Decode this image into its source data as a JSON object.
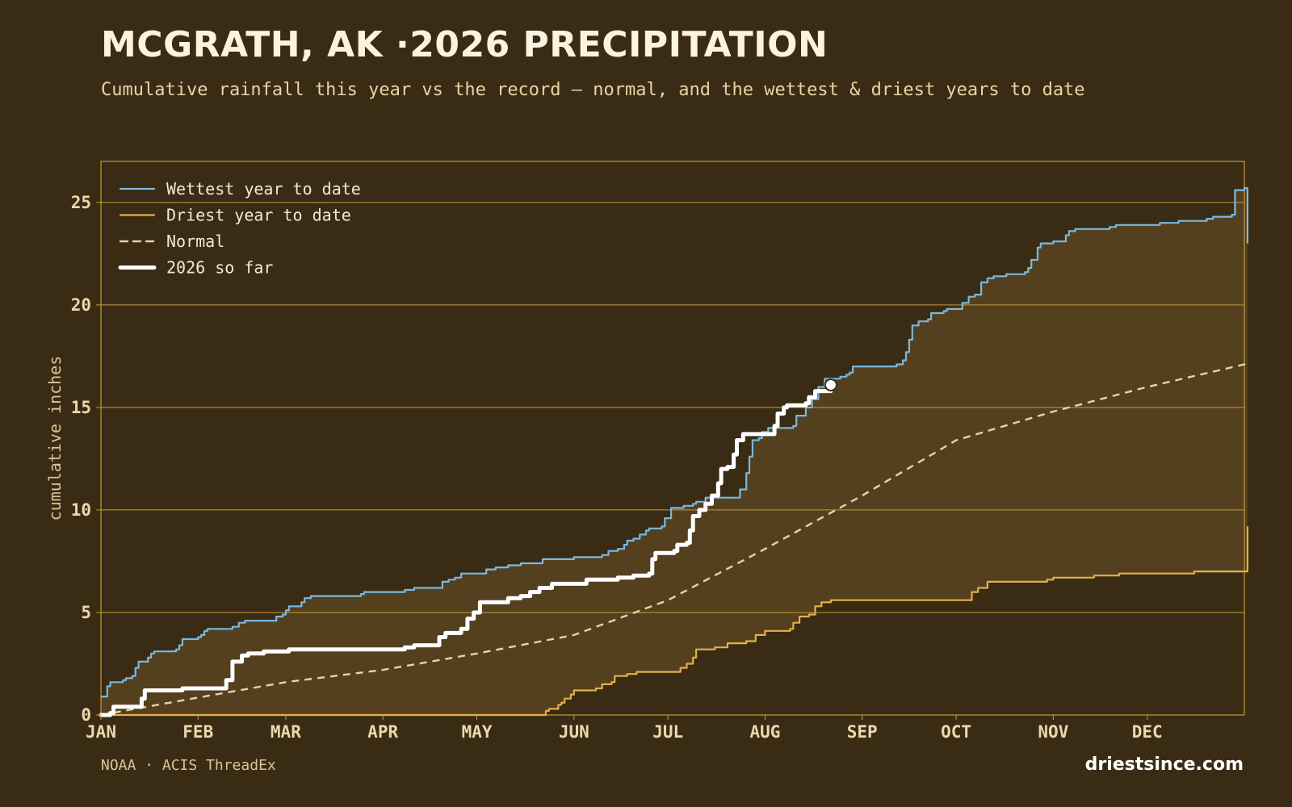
{
  "header": {
    "title": "MCGRATH, AK ·2026 PRECIPITATION",
    "subtitle": "Cumulative rainfall this year vs the record — normal, and the wettest & driest years to date"
  },
  "footer": {
    "source": "NOAA · ACIS ThreadEx",
    "brand": "driestsince.com"
  },
  "colors": {
    "background": "#3a2c14",
    "band_fill": "#54401f",
    "grid": "#c49a3a",
    "wettest": "#7ab8e0",
    "driest": "#e3b04a",
    "normal": "#e6d4a8",
    "current": "#ffffff"
  },
  "chart_data": {
    "type": "line",
    "ylabel": "cumulative inches",
    "xlim": [
      0,
      365
    ],
    "ylim": [
      0,
      27
    ],
    "yticks": [
      0,
      5,
      10,
      15,
      20,
      25
    ],
    "month_ticks": [
      {
        "label": "JAN",
        "day": 0
      },
      {
        "label": "FEB",
        "day": 31
      },
      {
        "label": "MAR",
        "day": 59
      },
      {
        "label": "APR",
        "day": 90
      },
      {
        "label": "MAY",
        "day": 120
      },
      {
        "label": "JUN",
        "day": 151
      },
      {
        "label": "JUL",
        "day": 181
      },
      {
        "label": "AUG",
        "day": 212
      },
      {
        "label": "SEP",
        "day": 243
      },
      {
        "label": "OCT",
        "day": 273
      },
      {
        "label": "NOV",
        "day": 304
      },
      {
        "label": "DEC",
        "day": 334
      }
    ],
    "grid": true,
    "legend_position": "top-left",
    "series": [
      {
        "key": "wettest",
        "name": "Wettest year to date",
        "style": "solid",
        "points": [
          [
            0,
            0.9
          ],
          [
            2,
            1.4
          ],
          [
            3,
            1.6
          ],
          [
            7,
            1.7
          ],
          [
            8,
            1.8
          ],
          [
            10,
            1.9
          ],
          [
            11,
            2.3
          ],
          [
            12,
            2.6
          ],
          [
            14,
            2.6
          ],
          [
            15,
            2.8
          ],
          [
            16,
            3.0
          ],
          [
            17,
            3.1
          ],
          [
            24,
            3.2
          ],
          [
            25,
            3.4
          ],
          [
            26,
            3.7
          ],
          [
            31,
            3.8
          ],
          [
            32,
            3.9
          ],
          [
            33,
            4.1
          ],
          [
            34,
            4.2
          ],
          [
            42,
            4.3
          ],
          [
            44,
            4.5
          ],
          [
            46,
            4.6
          ],
          [
            56,
            4.8
          ],
          [
            58,
            4.9
          ],
          [
            59,
            5.1
          ],
          [
            60,
            5.3
          ],
          [
            64,
            5.5
          ],
          [
            65,
            5.7
          ],
          [
            67,
            5.8
          ],
          [
            83,
            5.9
          ],
          [
            84,
            6.0
          ],
          [
            86,
            6.0
          ],
          [
            97,
            6.1
          ],
          [
            100,
            6.2
          ],
          [
            108,
            6.2
          ],
          [
            109,
            6.5
          ],
          [
            111,
            6.6
          ],
          [
            113,
            6.7
          ],
          [
            115,
            6.9
          ],
          [
            122,
            6.9
          ],
          [
            123,
            7.1
          ],
          [
            126,
            7.2
          ],
          [
            130,
            7.3
          ],
          [
            134,
            7.4
          ],
          [
            139,
            7.4
          ],
          [
            141,
            7.6
          ],
          [
            150,
            7.6
          ],
          [
            151,
            7.7
          ],
          [
            158,
            7.7
          ],
          [
            160,
            7.8
          ],
          [
            162,
            8.0
          ],
          [
            165,
            8.1
          ],
          [
            167,
            8.3
          ],
          [
            168,
            8.5
          ],
          [
            170,
            8.6
          ],
          [
            172,
            8.8
          ],
          [
            174,
            9.0
          ],
          [
            175,
            9.1
          ],
          [
            179,
            9.2
          ],
          [
            180,
            9.6
          ],
          [
            182,
            10.1
          ],
          [
            186,
            10.2
          ],
          [
            189,
            10.3
          ],
          [
            190,
            10.4
          ],
          [
            193,
            10.6
          ],
          [
            202,
            10.6
          ],
          [
            204,
            11.0
          ],
          [
            206,
            11.8
          ],
          [
            207,
            12.6
          ],
          [
            208,
            13.4
          ],
          [
            210,
            13.5
          ],
          [
            211,
            13.8
          ],
          [
            213,
            14.0
          ],
          [
            216,
            14.0
          ],
          [
            221,
            14.1
          ],
          [
            222,
            14.6
          ],
          [
            225,
            15.0
          ],
          [
            227,
            15.4
          ],
          [
            229,
            16.0
          ],
          [
            231,
            16.4
          ],
          [
            235,
            16.4
          ],
          [
            236,
            16.5
          ],
          [
            238,
            16.6
          ],
          [
            239,
            16.7
          ],
          [
            240,
            17.0
          ],
          [
            251,
            17.0
          ],
          [
            254,
            17.1
          ],
          [
            256,
            17.3
          ],
          [
            257,
            17.7
          ],
          [
            258,
            18.3
          ],
          [
            259,
            19.0
          ],
          [
            261,
            19.2
          ],
          [
            264,
            19.3
          ],
          [
            265,
            19.6
          ],
          [
            269,
            19.7
          ],
          [
            270,
            19.8
          ],
          [
            275,
            20.1
          ],
          [
            277,
            20.4
          ],
          [
            279,
            20.5
          ],
          [
            281,
            21.1
          ],
          [
            283,
            21.3
          ],
          [
            285,
            21.4
          ],
          [
            289,
            21.5
          ],
          [
            295,
            21.6
          ],
          [
            296,
            21.8
          ],
          [
            297,
            22.2
          ],
          [
            299,
            22.8
          ],
          [
            300,
            23.0
          ],
          [
            304,
            23.1
          ],
          [
            308,
            23.4
          ],
          [
            309,
            23.6
          ],
          [
            311,
            23.7
          ],
          [
            322,
            23.8
          ],
          [
            324,
            23.9
          ],
          [
            337,
            23.9
          ],
          [
            338,
            24.0
          ],
          [
            343,
            24.0
          ],
          [
            344,
            24.1
          ],
          [
            353,
            24.2
          ],
          [
            355,
            24.3
          ],
          [
            361,
            24.4
          ],
          [
            362,
            25.6
          ],
          [
            365,
            25.7
          ],
          [
            366,
            23.0
          ]
        ]
      },
      {
        "key": "driest",
        "name": "Driest year to date",
        "style": "solid",
        "points": [
          [
            0,
            0
          ],
          [
            140,
            0
          ],
          [
            142,
            0.2
          ],
          [
            143,
            0.3
          ],
          [
            146,
            0.5
          ],
          [
            147,
            0.6
          ],
          [
            148,
            0.8
          ],
          [
            150,
            1.0
          ],
          [
            151,
            1.2
          ],
          [
            155,
            1.2
          ],
          [
            158,
            1.3
          ],
          [
            160,
            1.5
          ],
          [
            163,
            1.6
          ],
          [
            164,
            1.9
          ],
          [
            168,
            2.0
          ],
          [
            171,
            2.1
          ],
          [
            183,
            2.1
          ],
          [
            185,
            2.3
          ],
          [
            187,
            2.5
          ],
          [
            189,
            2.8
          ],
          [
            190,
            3.2
          ],
          [
            196,
            3.3
          ],
          [
            200,
            3.5
          ],
          [
            206,
            3.6
          ],
          [
            209,
            3.9
          ],
          [
            212,
            4.1
          ],
          [
            220,
            4.2
          ],
          [
            221,
            4.5
          ],
          [
            223,
            4.8
          ],
          [
            226,
            4.9
          ],
          [
            228,
            5.3
          ],
          [
            230,
            5.5
          ],
          [
            233,
            5.6
          ],
          [
            240,
            5.6
          ],
          [
            247,
            5.6
          ],
          [
            277,
            5.6
          ],
          [
            278,
            6.0
          ],
          [
            280,
            6.2
          ],
          [
            283,
            6.5
          ],
          [
            300,
            6.5
          ],
          [
            302,
            6.6
          ],
          [
            304,
            6.7
          ],
          [
            317,
            6.8
          ],
          [
            325,
            6.9
          ],
          [
            349,
            7.0
          ],
          [
            365,
            7.0
          ],
          [
            366,
            9.2
          ]
        ]
      },
      {
        "key": "normal",
        "name": "Normal",
        "style": "dashed",
        "points": [
          [
            0,
            0
          ],
          [
            31,
            0.85
          ],
          [
            59,
            1.6
          ],
          [
            90,
            2.2
          ],
          [
            120,
            3.0
          ],
          [
            151,
            3.9
          ],
          [
            181,
            5.6
          ],
          [
            212,
            8.1
          ],
          [
            243,
            10.7
          ],
          [
            273,
            13.4
          ],
          [
            304,
            14.8
          ],
          [
            334,
            16.0
          ],
          [
            365,
            17.1
          ],
          [
            366,
            16.9
          ]
        ]
      },
      {
        "key": "current",
        "name": "2026 so far",
        "style": "bold",
        "points": [
          [
            0,
            0
          ],
          [
            3,
            0.1
          ],
          [
            4,
            0.4
          ],
          [
            12,
            0.4
          ],
          [
            13,
            0.8
          ],
          [
            14,
            1.2
          ],
          [
            26,
            1.3
          ],
          [
            37,
            1.3
          ],
          [
            40,
            1.7
          ],
          [
            42,
            2.6
          ],
          [
            45,
            2.9
          ],
          [
            47,
            3.0
          ],
          [
            52,
            3.1
          ],
          [
            60,
            3.2
          ],
          [
            95,
            3.2
          ],
          [
            97,
            3.3
          ],
          [
            100,
            3.4
          ],
          [
            107,
            3.4
          ],
          [
            108,
            3.8
          ],
          [
            110,
            4.0
          ],
          [
            115,
            4.2
          ],
          [
            117,
            4.7
          ],
          [
            119,
            5.0
          ],
          [
            121,
            5.5
          ],
          [
            125,
            5.5
          ],
          [
            130,
            5.7
          ],
          [
            134,
            5.8
          ],
          [
            137,
            6.0
          ],
          [
            140,
            6.2
          ],
          [
            144,
            6.4
          ],
          [
            148,
            6.4
          ],
          [
            155,
            6.6
          ],
          [
            161,
            6.6
          ],
          [
            165,
            6.7
          ],
          [
            170,
            6.8
          ],
          [
            175,
            6.9
          ],
          [
            176,
            7.6
          ],
          [
            177,
            7.9
          ],
          [
            183,
            8.0
          ],
          [
            184,
            8.3
          ],
          [
            187,
            8.4
          ],
          [
            188,
            9.0
          ],
          [
            189,
            9.7
          ],
          [
            191,
            10.0
          ],
          [
            193,
            10.3
          ],
          [
            195,
            10.7
          ],
          [
            197,
            11.3
          ],
          [
            198,
            12.0
          ],
          [
            200,
            12.1
          ],
          [
            202,
            12.7
          ],
          [
            203,
            13.4
          ],
          [
            205,
            13.7
          ],
          [
            214,
            13.7
          ],
          [
            215,
            14.1
          ],
          [
            216,
            14.7
          ],
          [
            218,
            15.0
          ],
          [
            219,
            15.1
          ],
          [
            225,
            15.2
          ],
          [
            226,
            15.5
          ],
          [
            228,
            15.8
          ],
          [
            231,
            15.8
          ],
          [
            233,
            16.1
          ]
        ]
      }
    ],
    "end_marker": {
      "day": 233,
      "value": 16.1
    }
  }
}
